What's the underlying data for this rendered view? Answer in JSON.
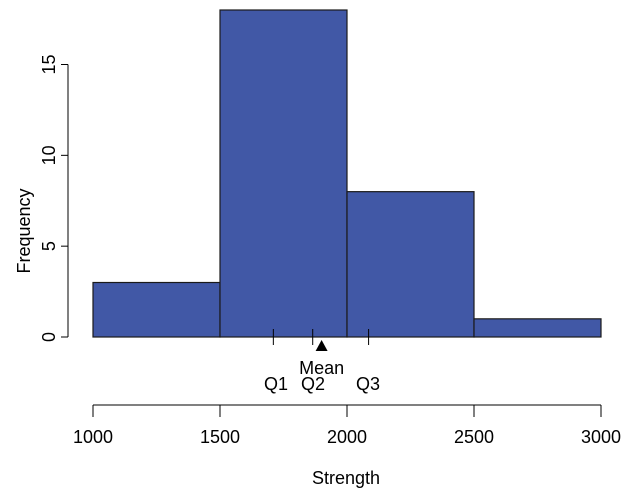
{
  "chart_data": {
    "type": "bar",
    "subtype": "histogram",
    "xlabel": "Strength",
    "ylabel": "Frequency",
    "xlim": [
      1000,
      3000
    ],
    "ylim": [
      0,
      18
    ],
    "bins": [
      {
        "x0": 1000,
        "x1": 1500,
        "count": 3
      },
      {
        "x0": 1500,
        "x1": 2000,
        "count": 18
      },
      {
        "x0": 2000,
        "x1": 2500,
        "count": 8
      },
      {
        "x0": 2500,
        "x1": 3000,
        "count": 1
      }
    ],
    "x_ticks": [
      1000,
      1500,
      2000,
      2500,
      3000
    ],
    "x_tick_labels": [
      "1000",
      "1500",
      "2000",
      "2500",
      "3000"
    ],
    "y_ticks": [
      0,
      5,
      10,
      15
    ],
    "y_tick_labels": [
      "0",
      "5",
      "10",
      "15"
    ],
    "bar_color": "#4158a6",
    "summary": {
      "mean": {
        "label": "Mean",
        "value": 1900
      },
      "quartiles": [
        {
          "label": "Q1",
          "value": 1710
        },
        {
          "label": "Q2",
          "value": 1865
        },
        {
          "label": "Q3",
          "value": 2085
        }
      ]
    },
    "grid": false,
    "legend": "none"
  }
}
